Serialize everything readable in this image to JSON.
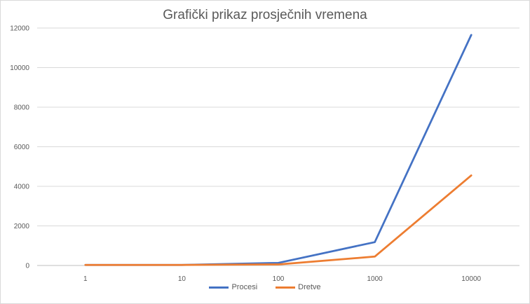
{
  "chart_data": {
    "type": "line",
    "title": "Grafički prikaz prosječnih vremena",
    "categories": [
      "1",
      "10",
      "100",
      "1000",
      "10000"
    ],
    "series": [
      {
        "name": "Procesi",
        "color": "#4472C4",
        "values": [
          25,
          25,
          130,
          1180,
          11650
        ]
      },
      {
        "name": "Dretve",
        "color": "#ED7D31",
        "values": [
          25,
          25,
          55,
          450,
          4550
        ]
      }
    ],
    "ylim": [
      0,
      12000
    ],
    "yticks": [
      "0",
      "2000",
      "4000",
      "6000",
      "8000",
      "10000",
      "12000"
    ],
    "grid": true,
    "legend_position": "bottom"
  }
}
